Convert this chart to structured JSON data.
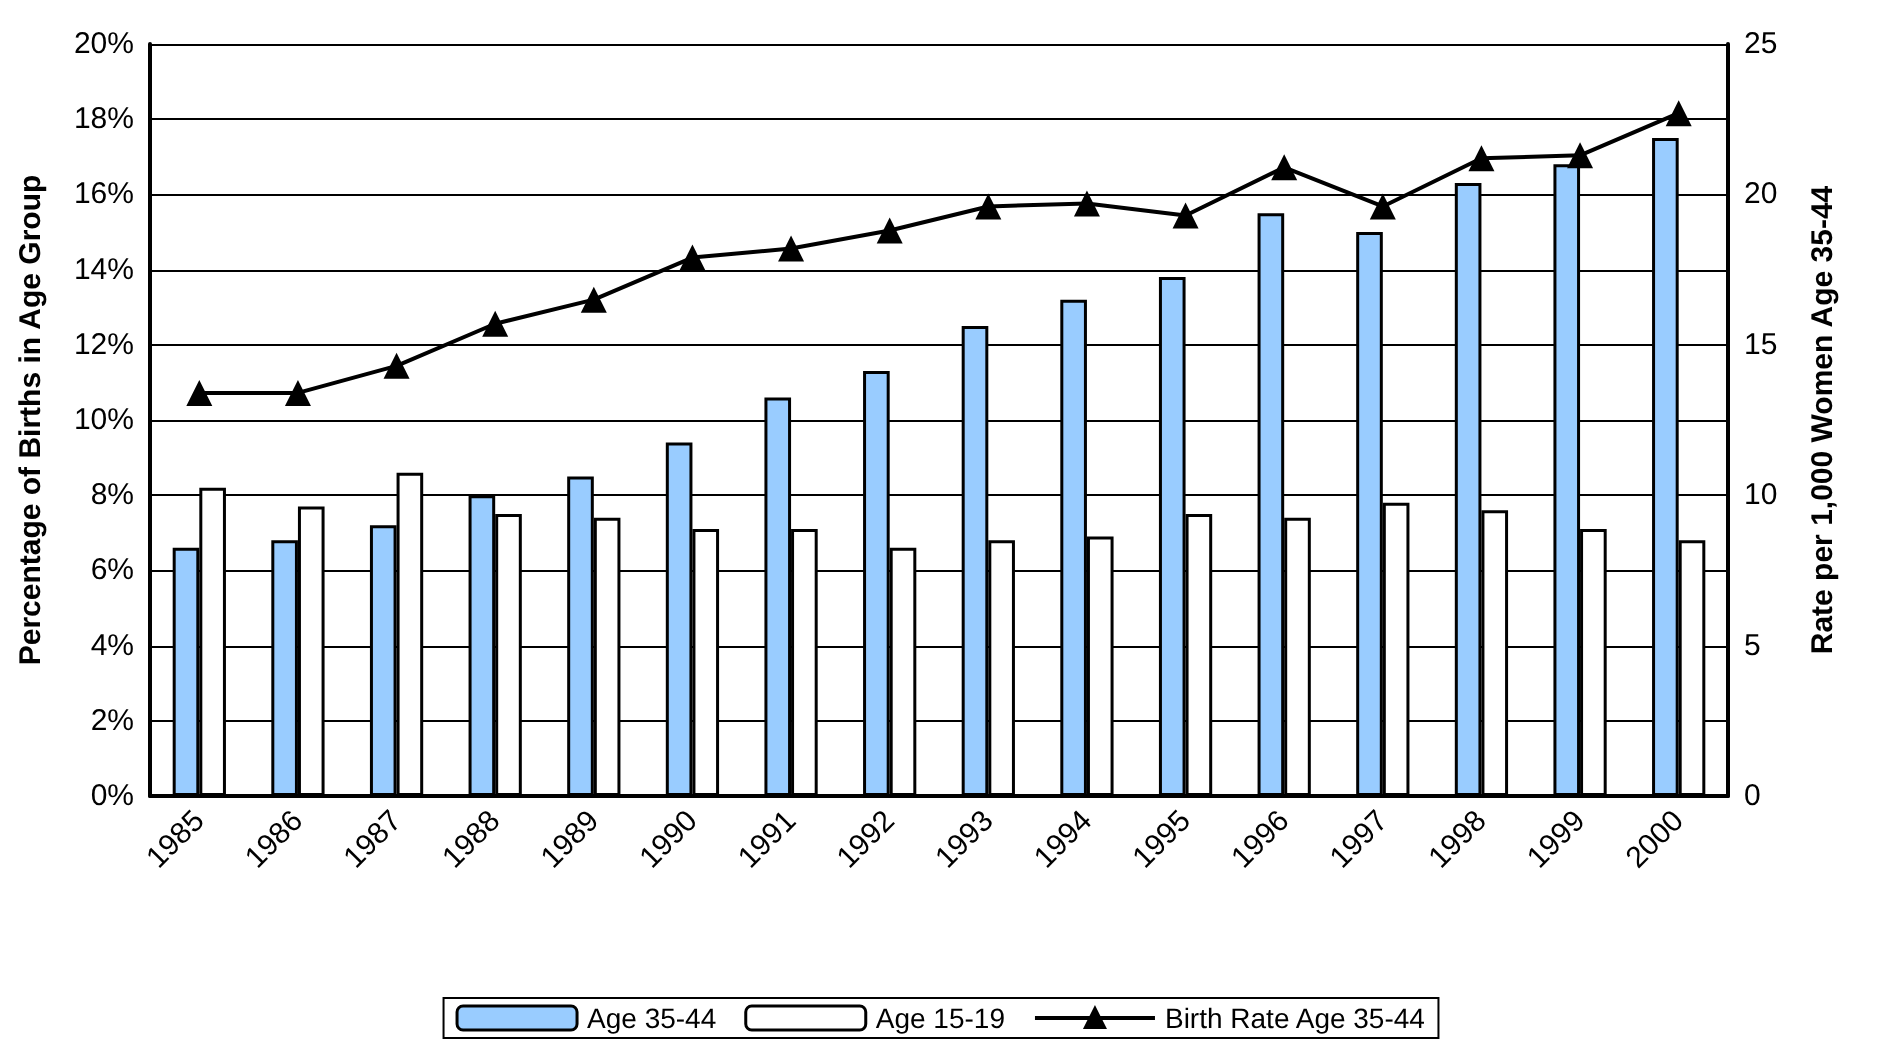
{
  "chart_data": {
    "type": "bar",
    "categories": [
      "1985",
      "1986",
      "1987",
      "1988",
      "1989",
      "1990",
      "1991",
      "1992",
      "1993",
      "1994",
      "1995",
      "1996",
      "1997",
      "1998",
      "1999",
      "2000"
    ],
    "ylabel": "Percentage of Births in Age Group",
    "y2label": "Rate per 1,000 Women Age 35-44",
    "series": [
      {
        "name": "Age 35-44",
        "color": "#99ccff",
        "values": [
          6.6,
          6.8,
          7.2,
          8.0,
          8.5,
          9.4,
          10.6,
          11.3,
          12.5,
          13.2,
          13.8,
          15.5,
          15.0,
          16.3,
          16.8,
          17.5
        ]
      },
      {
        "name": "Age 15-19",
        "color": "#ffffff",
        "values": [
          8.2,
          7.7,
          8.6,
          7.5,
          7.4,
          7.1,
          7.1,
          6.6,
          6.8,
          6.9,
          7.5,
          7.4,
          7.8,
          7.6,
          7.1,
          6.8
        ]
      },
      {
        "name": "Birth Rate Age 35-44",
        "type": "line",
        "axis": "y2",
        "color": "#000000",
        "marker": "triangle",
        "values": [
          13.4,
          13.4,
          14.3,
          15.7,
          16.5,
          17.9,
          18.2,
          18.8,
          19.6,
          19.7,
          19.3,
          20.9,
          19.6,
          21.2,
          21.3,
          22.7
        ]
      }
    ],
    "ylim": [
      0,
      20
    ],
    "yticks": [
      {
        "value": 0,
        "label": "0%"
      },
      {
        "value": 2,
        "label": "2%"
      },
      {
        "value": 4,
        "label": "4%"
      },
      {
        "value": 6,
        "label": "6%"
      },
      {
        "value": 8,
        "label": "8%"
      },
      {
        "value": 10,
        "label": "10%"
      },
      {
        "value": 12,
        "label": "12%"
      },
      {
        "value": 14,
        "label": "14%"
      },
      {
        "value": 16,
        "label": "16%"
      },
      {
        "value": 18,
        "label": "18%"
      },
      {
        "value": 20,
        "label": "20%"
      }
    ],
    "y2lim": [
      0,
      25
    ],
    "y2ticks": [
      0,
      5,
      10,
      15,
      20,
      25
    ],
    "grid": "y",
    "legend": "bottom"
  }
}
